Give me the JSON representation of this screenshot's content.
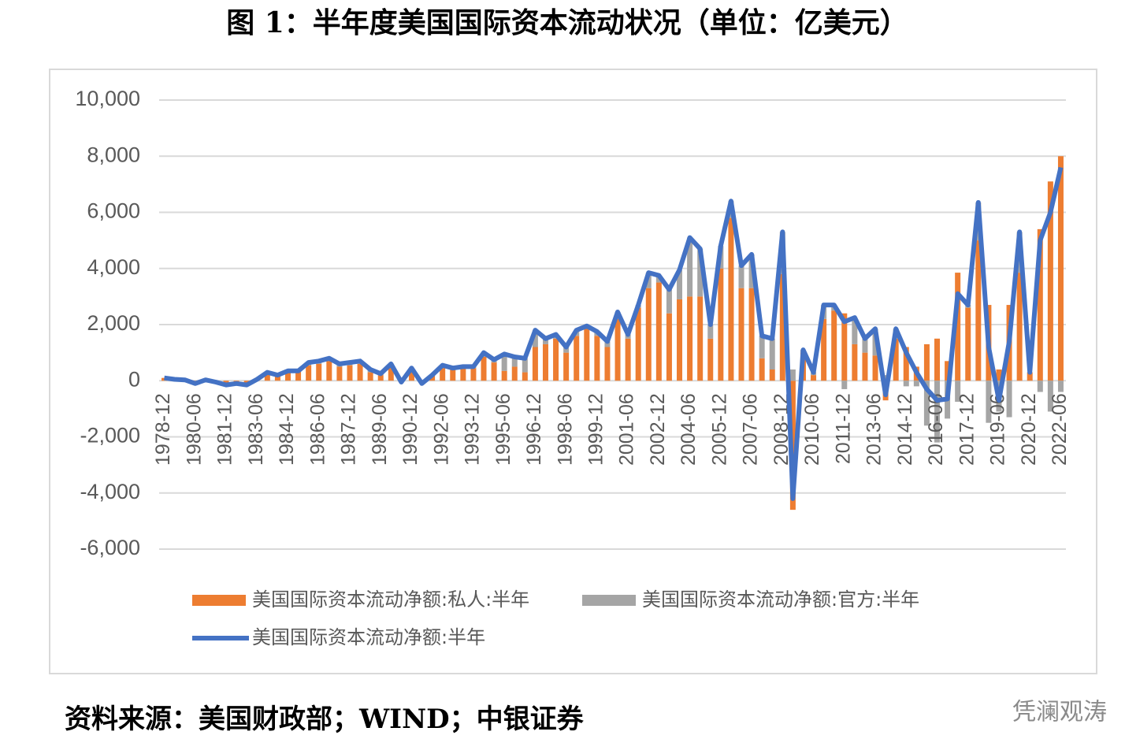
{
  "chart_data": {
    "type": "bar-line",
    "title": "图 1：半年度美国国际资本流动状况（单位：亿美元）",
    "source": "资料来源：美国财政部；WIND；中银证券",
    "watermark": "凭澜观涛",
    "categories": [
      "1978-12",
      null,
      null,
      "1980-06",
      null,
      null,
      "1981-12",
      null,
      null,
      "1983-06",
      null,
      null,
      "1984-12",
      null,
      null,
      "1986-06",
      null,
      null,
      "1987-12",
      null,
      null,
      "1989-06",
      null,
      null,
      "1990-12",
      null,
      null,
      "1992-06",
      null,
      null,
      "1993-12",
      null,
      null,
      "1995-06",
      null,
      null,
      "1996-12",
      null,
      null,
      "1998-06",
      null,
      null,
      "1999-12",
      null,
      null,
      "2001-06",
      null,
      null,
      "2002-12",
      null,
      null,
      "2004-06",
      null,
      null,
      "2005-12",
      null,
      null,
      "2007-06",
      null,
      null,
      "2008-12",
      null,
      null,
      "2010-06",
      null,
      null,
      "2011-12",
      null,
      null,
      "2013-06",
      null,
      null,
      "2014-12",
      null,
      null,
      "2016-06",
      null,
      null,
      "2017-12",
      null,
      null,
      "2019-06",
      null,
      null,
      "2020-12",
      null,
      null,
      "2022-06"
    ],
    "series": [
      {
        "name": "美国国际资本流动净额:私人:半年",
        "color": "#ed7d31",
        "kind": "bar",
        "values": [
          100,
          50,
          30,
          -80,
          30,
          -30,
          -100,
          -80,
          -100,
          50,
          250,
          200,
          300,
          350,
          550,
          600,
          700,
          500,
          550,
          600,
          300,
          200,
          500,
          -50,
          300,
          -100,
          200,
          450,
          400,
          450,
          450,
          850,
          650,
          350,
          500,
          300,
          1200,
          1300,
          1500,
          1000,
          1600,
          1900,
          1600,
          1200,
          2200,
          1500,
          2600,
          3300,
          3500,
          2400,
          2900,
          3000,
          3000,
          1500,
          4000,
          5800,
          3300,
          3300,
          800,
          400,
          3800,
          -4600,
          1000,
          200,
          2200,
          2500,
          2400,
          1300,
          1000,
          900,
          -700,
          1500,
          1200,
          500,
          1300,
          1500,
          700,
          3850,
          2600,
          5000,
          2700,
          400,
          2700,
          3850,
          300,
          5400,
          7100,
          8000
        ]
      },
      {
        "name": "美国国际资本流动净额:官方:半年",
        "color": "#a5a5a5",
        "kind": "bar",
        "values": [
          0,
          0,
          0,
          -20,
          0,
          -20,
          -50,
          -20,
          -50,
          0,
          50,
          0,
          50,
          0,
          100,
          100,
          100,
          100,
          100,
          100,
          100,
          50,
          100,
          0,
          150,
          0,
          0,
          100,
          50,
          50,
          50,
          150,
          100,
          600,
          350,
          500,
          600,
          200,
          150,
          200,
          200,
          50,
          150,
          200,
          250,
          150,
          100,
          550,
          250,
          850,
          1050,
          2100,
          1700,
          500,
          800,
          600,
          800,
          1200,
          800,
          1100,
          1500,
          400,
          100,
          100,
          500,
          200,
          -300,
          950,
          500,
          950,
          200,
          350,
          -200,
          -200,
          -1600,
          -2200,
          -1350,
          -750,
          100,
          1350,
          -1500,
          -1100,
          -1300,
          1450,
          0,
          -400,
          -1100,
          -400
        ]
      },
      {
        "name": "美国国际资本流动净额:半年",
        "color": "#4472c4",
        "kind": "line",
        "values": [
          100,
          50,
          30,
          -100,
          30,
          -50,
          -150,
          -100,
          -150,
          50,
          300,
          200,
          350,
          350,
          650,
          700,
          800,
          600,
          650,
          700,
          400,
          250,
          600,
          -50,
          450,
          -100,
          200,
          550,
          450,
          500,
          500,
          1000,
          750,
          950,
          850,
          800,
          1800,
          1500,
          1650,
          1200,
          1800,
          1950,
          1750,
          1400,
          2450,
          1650,
          2700,
          3850,
          3750,
          3250,
          3950,
          5100,
          4700,
          2000,
          4800,
          6400,
          4100,
          4500,
          1600,
          1500,
          5300,
          -4200,
          1100,
          300,
          2700,
          2700,
          2100,
          2250,
          1500,
          1850,
          -500,
          1850,
          1000,
          300,
          -300,
          -700,
          -650,
          3100,
          2700,
          6350,
          1200,
          -700,
          1400,
          5300,
          300,
          5000,
          6000,
          7600
        ]
      }
    ],
    "ylim": [
      -6000,
      10000
    ],
    "yticks": [
      {
        "value": -6000,
        "label": "-6,000"
      },
      {
        "value": -4000,
        "label": "-4,000"
      },
      {
        "value": -2000,
        "label": "-2,000"
      },
      0,
      {
        "value": 2000,
        "label": "2,000"
      },
      {
        "value": 4000,
        "label": "4,000"
      },
      {
        "value": 6000,
        "label": "6,000"
      },
      {
        "value": 8000,
        "label": "8,000"
      },
      {
        "value": 10000,
        "label": "10,000"
      }
    ],
    "grid": true
  }
}
